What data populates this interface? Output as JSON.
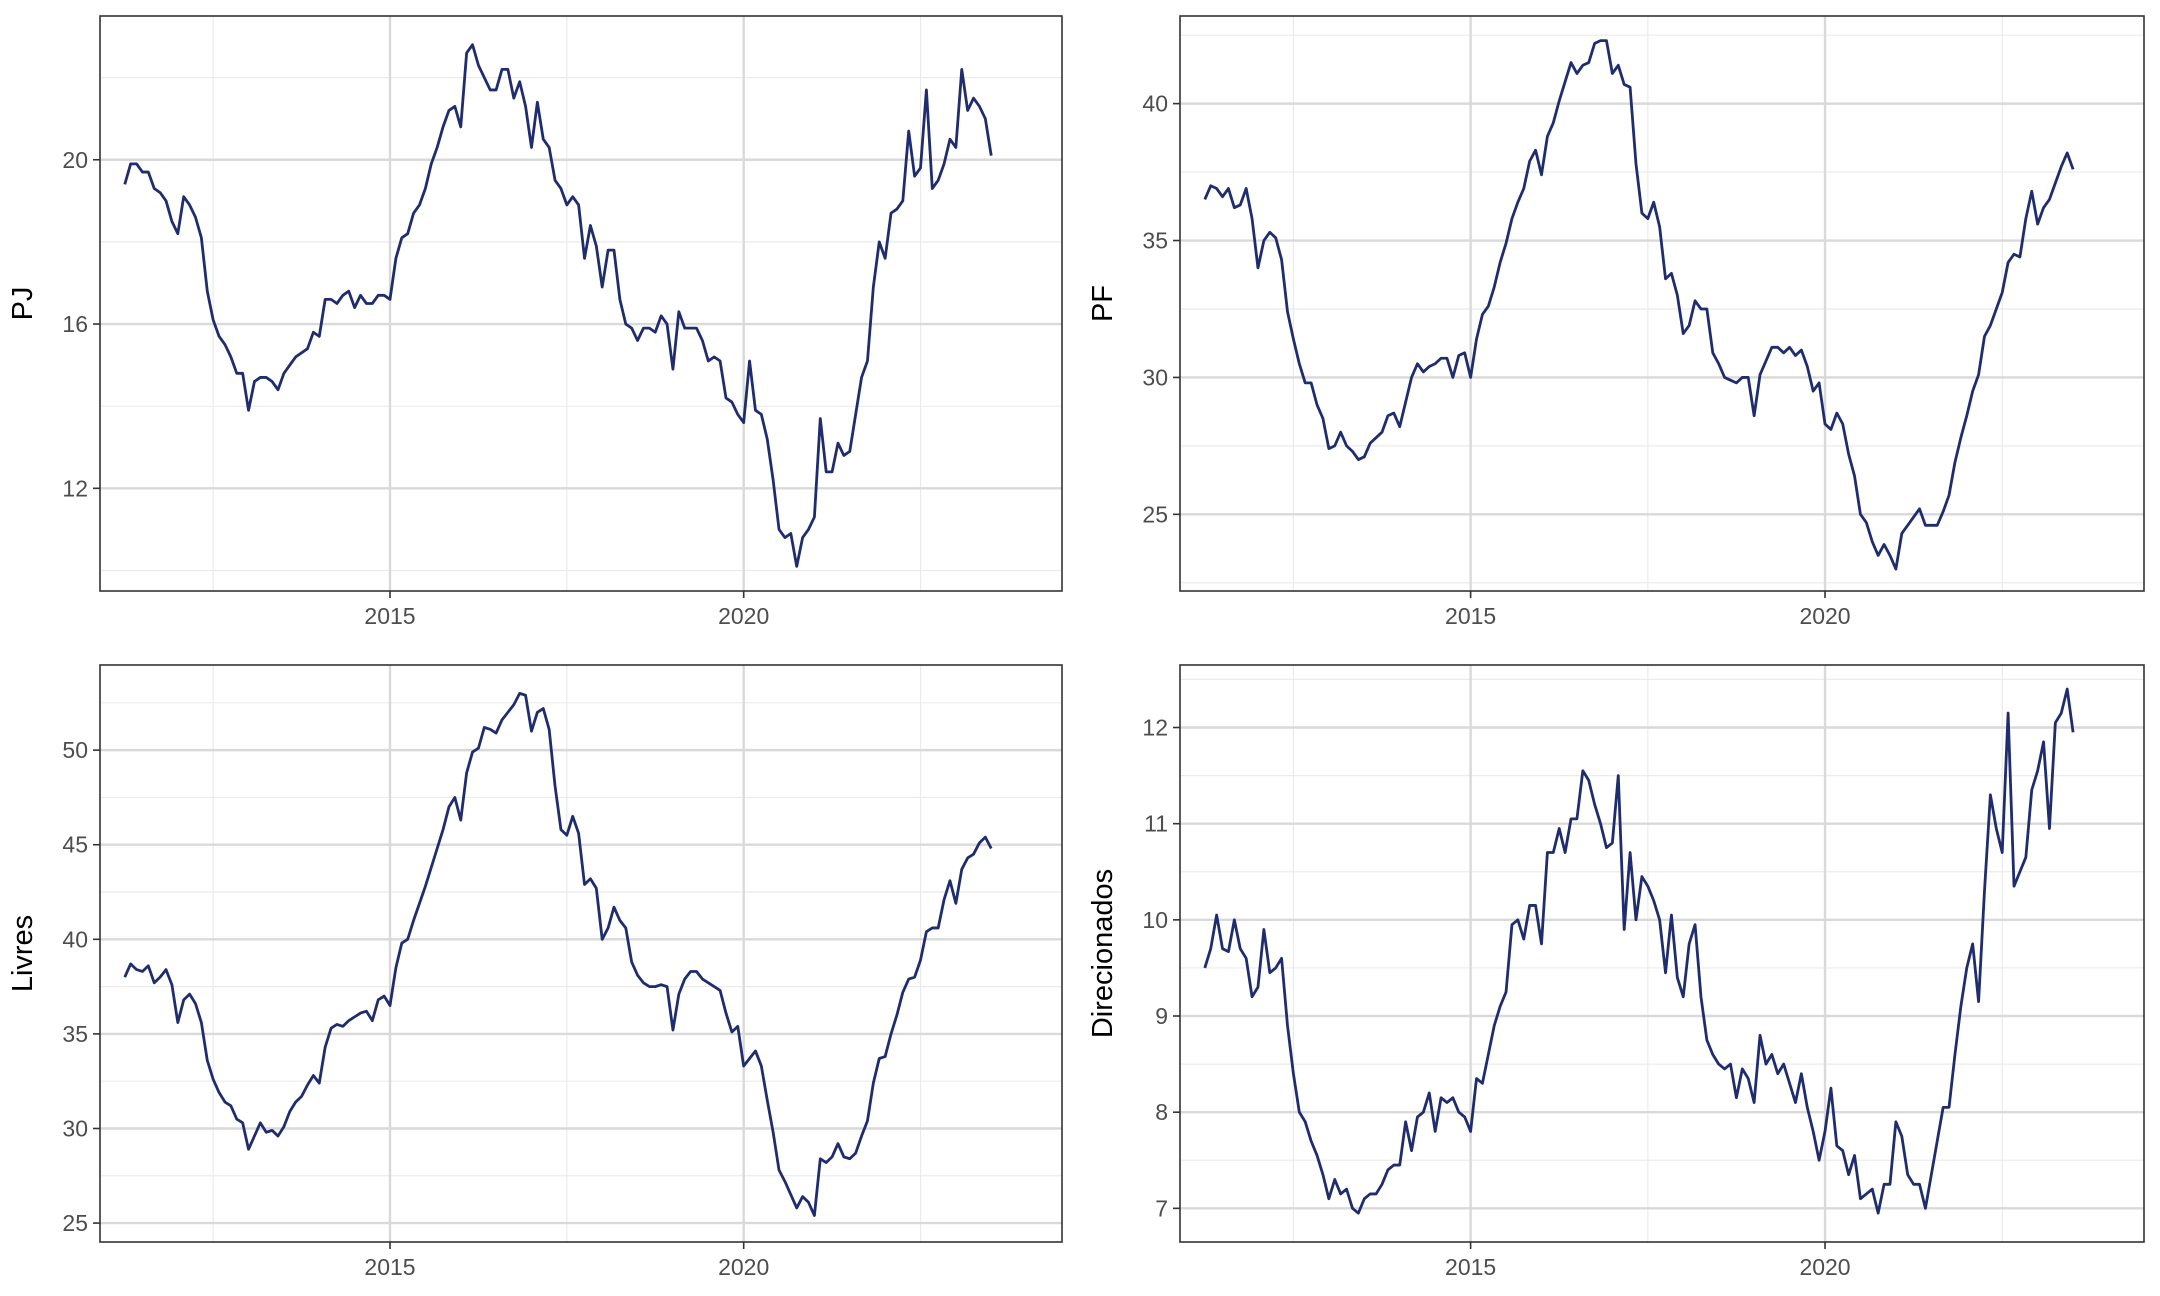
{
  "colors": {
    "line": "#1f2d6e",
    "grid_major": "#d9d9d9",
    "grid_minor": "#ebebeb",
    "frame": "#333333",
    "tick_text": "#4d4d4d"
  },
  "chart_data": [
    {
      "type": "line",
      "title": "",
      "xlabel": "",
      "ylabel": "PJ",
      "xlim": [
        2010.9,
        2024.5
      ],
      "ylim": [
        9.5,
        23.5
      ],
      "xticks": [
        2015,
        2020
      ],
      "yticks": [
        12,
        16,
        20
      ],
      "grid": true,
      "series": [
        {
          "x0": 2011.25,
          "dx": 0.08333,
          "values": [
            19.4,
            19.9,
            19.9,
            19.7,
            19.7,
            19.3,
            19.2,
            19.0,
            18.5,
            18.2,
            19.1,
            18.9,
            18.6,
            18.1,
            16.8,
            16.1,
            15.7,
            15.5,
            15.2,
            14.8,
            14.8,
            13.9,
            14.6,
            14.7,
            14.7,
            14.6,
            14.4,
            14.8,
            15.0,
            15.2,
            15.3,
            15.4,
            15.8,
            15.7,
            16.6,
            16.6,
            16.5,
            16.7,
            16.8,
            16.4,
            16.7,
            16.5,
            16.5,
            16.7,
            16.7,
            16.6,
            17.6,
            18.1,
            18.2,
            18.7,
            18.9,
            19.3,
            19.9,
            20.3,
            20.8,
            21.2,
            21.3,
            20.8,
            22.6,
            22.8,
            22.3,
            22.0,
            21.7,
            21.7,
            22.2,
            22.2,
            21.5,
            21.9,
            21.3,
            20.3,
            21.4,
            20.5,
            20.3,
            19.5,
            19.3,
            18.9,
            19.1,
            18.9,
            17.6,
            18.4,
            17.9,
            16.9,
            17.8,
            17.8,
            16.6,
            16.0,
            15.9,
            15.6,
            15.9,
            15.9,
            15.8,
            16.2,
            16.0,
            14.9,
            16.3,
            15.9,
            15.9,
            15.9,
            15.6,
            15.1,
            15.2,
            15.1,
            14.2,
            14.1,
            13.8,
            13.6,
            15.1,
            13.9,
            13.8,
            13.2,
            12.2,
            11.0,
            10.8,
            10.9,
            10.1,
            10.8,
            11.0,
            11.3,
            13.7,
            12.4,
            12.4,
            13.1,
            12.8,
            12.9,
            13.8,
            14.7,
            15.1,
            16.9,
            18.0,
            17.6,
            18.7,
            18.8,
            19.0,
            20.7,
            19.6,
            19.8,
            21.7,
            19.3,
            19.5,
            19.9,
            20.5,
            20.3,
            22.2,
            21.2,
            21.5,
            21.3,
            21.0,
            20.1
          ]
        }
      ]
    },
    {
      "type": "line",
      "title": "",
      "xlabel": "",
      "ylabel": "PF",
      "xlim": [
        2010.9,
        2024.5
      ],
      "ylim": [
        22.2,
        43.2
      ],
      "xticks": [
        2015,
        2020
      ],
      "yticks": [
        25,
        30,
        35,
        40
      ],
      "grid": true,
      "series": [
        {
          "x0": 2011.25,
          "dx": 0.08333,
          "values": [
            36.5,
            37.0,
            36.9,
            36.6,
            36.9,
            36.2,
            36.3,
            36.9,
            35.8,
            34.0,
            35.0,
            35.3,
            35.1,
            34.3,
            32.4,
            31.4,
            30.5,
            29.8,
            29.8,
            29.0,
            28.5,
            27.4,
            27.5,
            28.0,
            27.5,
            27.3,
            27.0,
            27.1,
            27.6,
            27.8,
            28.0,
            28.6,
            28.7,
            28.2,
            29.1,
            30.0,
            30.5,
            30.2,
            30.4,
            30.5,
            30.7,
            30.7,
            30.0,
            30.8,
            30.9,
            30.0,
            31.4,
            32.3,
            32.6,
            33.3,
            34.2,
            34.9,
            35.8,
            36.4,
            36.9,
            37.9,
            38.3,
            37.4,
            38.8,
            39.3,
            40.1,
            40.8,
            41.5,
            41.1,
            41.4,
            41.5,
            42.2,
            42.3,
            42.3,
            41.1,
            41.4,
            40.7,
            40.6,
            37.8,
            36.0,
            35.8,
            36.4,
            35.5,
            33.6,
            33.8,
            33.0,
            31.6,
            31.9,
            32.8,
            32.5,
            32.5,
            30.9,
            30.5,
            30.0,
            29.9,
            29.8,
            30.0,
            30.0,
            28.6,
            30.1,
            30.6,
            31.1,
            31.1,
            30.9,
            31.1,
            30.8,
            31.0,
            30.4,
            29.5,
            29.8,
            28.3,
            28.1,
            28.7,
            28.3,
            27.2,
            26.4,
            25.0,
            24.7,
            24.0,
            23.5,
            23.9,
            23.5,
            23.0,
            24.3,
            24.6,
            24.9,
            25.2,
            24.6,
            24.6,
            24.6,
            25.1,
            25.7,
            26.9,
            27.8,
            28.6,
            29.5,
            30.1,
            31.5,
            31.9,
            32.5,
            33.1,
            34.2,
            34.5,
            34.4,
            35.8,
            36.8,
            35.6,
            36.2,
            36.5,
            37.1,
            37.7,
            38.2,
            37.6
          ]
        }
      ]
    },
    {
      "type": "line",
      "title": "",
      "xlabel": "",
      "ylabel": "Livres",
      "xlim": [
        2010.9,
        2024.5
      ],
      "ylim": [
        24.0,
        54.5
      ],
      "xticks": [
        2015,
        2020
      ],
      "yticks": [
        25,
        30,
        35,
        40,
        45,
        50
      ],
      "grid": true,
      "series": [
        {
          "x0": 2011.25,
          "dx": 0.08333,
          "values": [
            38.0,
            38.7,
            38.4,
            38.3,
            38.6,
            37.7,
            38.0,
            38.4,
            37.6,
            35.6,
            36.8,
            37.1,
            36.6,
            35.6,
            33.6,
            32.6,
            31.9,
            31.4,
            31.2,
            30.5,
            30.3,
            28.9,
            29.6,
            30.3,
            29.8,
            29.9,
            29.6,
            30.1,
            30.9,
            31.4,
            31.7,
            32.3,
            32.8,
            32.4,
            34.3,
            35.3,
            35.5,
            35.4,
            35.7,
            35.9,
            36.1,
            36.2,
            35.7,
            36.8,
            37.0,
            36.5,
            38.5,
            39.8,
            40.0,
            41.0,
            41.9,
            42.8,
            43.8,
            44.8,
            45.8,
            47.0,
            47.5,
            46.3,
            48.8,
            49.9,
            50.1,
            51.2,
            51.1,
            50.9,
            51.6,
            52.0,
            52.4,
            53.0,
            52.9,
            51.0,
            52.0,
            52.2,
            51.1,
            48.1,
            45.8,
            45.5,
            46.5,
            45.6,
            42.9,
            43.2,
            42.7,
            40.0,
            40.6,
            41.7,
            41.0,
            40.6,
            38.8,
            38.1,
            37.7,
            37.5,
            37.5,
            37.6,
            37.5,
            35.2,
            37.1,
            37.9,
            38.3,
            38.3,
            37.9,
            37.7,
            37.5,
            37.3,
            36.1,
            35.1,
            35.4,
            33.3,
            33.7,
            34.1,
            33.3,
            31.5,
            29.8,
            27.8,
            27.2,
            26.5,
            25.8,
            26.4,
            26.1,
            25.4,
            28.4,
            28.2,
            28.5,
            29.2,
            28.5,
            28.4,
            28.7,
            29.6,
            30.4,
            32.4,
            33.7,
            33.8,
            35.0,
            36.0,
            37.2,
            37.9,
            38.0,
            38.9,
            40.4,
            40.6,
            40.6,
            42.1,
            43.1,
            41.9,
            43.7,
            44.3,
            44.5,
            45.1,
            45.4,
            44.8
          ]
        }
      ]
    },
    {
      "type": "line",
      "title": "",
      "xlabel": "",
      "ylabel": "Direcionados",
      "xlim": [
        2010.9,
        2024.5
      ],
      "ylim": [
        6.65,
        12.65
      ],
      "xticks": [
        2015,
        2020
      ],
      "yticks": [
        7,
        8,
        9,
        10,
        11,
        12
      ],
      "grid": true,
      "series": [
        {
          "x0": 2011.25,
          "dx": 0.08333,
          "values": [
            9.5,
            9.7,
            10.05,
            9.7,
            9.67,
            10.0,
            9.7,
            9.6,
            9.2,
            9.3,
            9.9,
            9.45,
            9.5,
            9.6,
            8.9,
            8.4,
            8.0,
            7.9,
            7.7,
            7.55,
            7.35,
            7.1,
            7.3,
            7.15,
            7.2,
            7.0,
            6.95,
            7.1,
            7.15,
            7.15,
            7.25,
            7.4,
            7.45,
            7.45,
            7.9,
            7.6,
            7.95,
            8.0,
            8.2,
            7.8,
            8.15,
            8.1,
            8.15,
            8.0,
            7.95,
            7.8,
            8.35,
            8.3,
            8.6,
            8.9,
            9.1,
            9.25,
            9.95,
            10.0,
            9.8,
            10.15,
            10.15,
            9.75,
            10.7,
            10.7,
            10.95,
            10.7,
            11.05,
            11.05,
            11.55,
            11.45,
            11.2,
            11.0,
            10.75,
            10.8,
            11.5,
            9.9,
            10.7,
            10.0,
            10.45,
            10.35,
            10.2,
            10.0,
            9.45,
            10.05,
            9.4,
            9.2,
            9.75,
            9.95,
            9.2,
            8.75,
            8.6,
            8.5,
            8.45,
            8.5,
            8.15,
            8.45,
            8.35,
            8.1,
            8.8,
            8.5,
            8.6,
            8.4,
            8.5,
            8.3,
            8.1,
            8.4,
            8.05,
            7.8,
            7.5,
            7.8,
            8.25,
            7.65,
            7.6,
            7.35,
            7.55,
            7.1,
            7.15,
            7.2,
            6.95,
            7.25,
            7.25,
            7.9,
            7.75,
            7.35,
            7.25,
            7.25,
            7.0,
            7.35,
            7.7,
            8.05,
            8.05,
            8.6,
            9.1,
            9.5,
            9.75,
            9.15,
            10.3,
            11.3,
            10.95,
            10.7,
            12.15,
            10.35,
            10.5,
            10.65,
            11.35,
            11.55,
            11.85,
            10.95,
            12.05,
            12.15,
            12.4,
            11.95
          ]
        }
      ]
    }
  ]
}
